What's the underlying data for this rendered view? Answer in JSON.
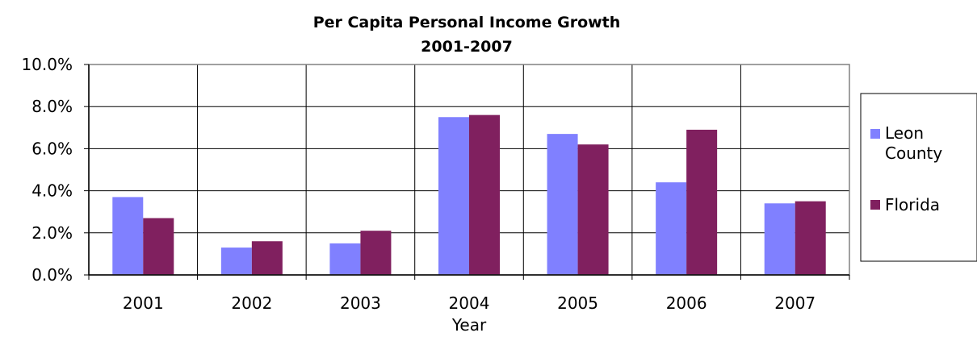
{
  "chart_data": {
    "type": "bar",
    "title": "Per Capita Personal Income Growth",
    "subtitle": "2001-2007",
    "xlabel": "Year",
    "ylabel": "",
    "categories": [
      "2001",
      "2002",
      "2003",
      "2004",
      "2005",
      "2006",
      "2007"
    ],
    "series": [
      {
        "name": "Leon County",
        "values": [
          3.7,
          1.3,
          1.5,
          7.5,
          6.7,
          4.4,
          3.4
        ],
        "color": "#8080ff"
      },
      {
        "name": "Florida",
        "values": [
          2.7,
          1.6,
          2.1,
          7.6,
          6.2,
          6.9,
          3.5
        ],
        "color": "#80205f"
      }
    ],
    "ylim": [
      0,
      10
    ],
    "yticks": [
      "0.0%",
      "2.0%",
      "4.0%",
      "6.0%",
      "8.0%",
      "10.0%"
    ],
    "grid": true,
    "legend_position": "right",
    "legend_labels": [
      [
        "Leon",
        "County"
      ],
      [
        "Florida"
      ]
    ]
  }
}
